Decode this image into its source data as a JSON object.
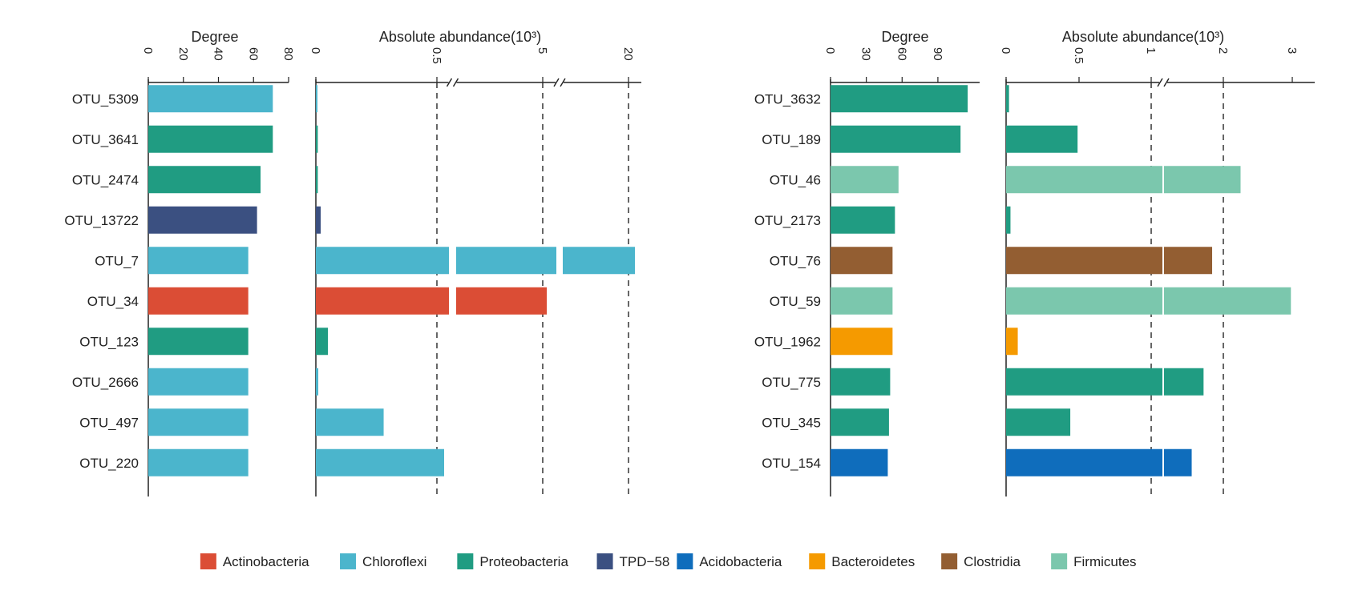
{
  "chart_data": [
    {
      "type": "bar",
      "orientation": "horizontal",
      "title": "Degree",
      "categories": [
        "OTU_5309",
        "OTU_3641",
        "OTU_2474",
        "OTU_13722",
        "OTU_7",
        "OTU_34",
        "OTU_123",
        "OTU_2666",
        "OTU_497",
        "OTU_220"
      ],
      "values": [
        71,
        71,
        64,
        62,
        57,
        57,
        57,
        57,
        57,
        57
      ],
      "phyla": [
        "Chloroflexi",
        "Proteobacteria",
        "Proteobacteria",
        "TPD-58",
        "Chloroflexi",
        "Actinobacteria",
        "Proteobacteria",
        "Chloroflexi",
        "Chloroflexi",
        "Chloroflexi"
      ],
      "xlim": [
        0,
        80
      ],
      "ticks": [
        0,
        20,
        40,
        60,
        80
      ],
      "tick_labels": [
        "0",
        "20",
        "40",
        "60",
        "80"
      ]
    },
    {
      "type": "bar",
      "orientation": "horizontal",
      "title": "Absolute abundance(10³)",
      "categories": [
        "OTU_5309",
        "OTU_3641",
        "OTU_2474",
        "OTU_13722",
        "OTU_7",
        "OTU_34",
        "OTU_123",
        "OTU_2666",
        "OTU_497",
        "OTU_220"
      ],
      "values": [
        0.005,
        0.008,
        0.008,
        0.02,
        20.5,
        5.3,
        0.05,
        0.01,
        0.28,
        0.53
      ],
      "phyla": [
        "Chloroflexi",
        "Proteobacteria",
        "Proteobacteria",
        "TPD-58",
        "Chloroflexi",
        "Actinobacteria",
        "Proteobacteria",
        "Chloroflexi",
        "Chloroflexi",
        "Chloroflexi"
      ],
      "axis_breaks": [
        0.55,
        6
      ],
      "ticks": [
        0,
        0.5,
        5,
        20
      ],
      "tick_labels": [
        "0",
        "0.5",
        "5",
        "20"
      ],
      "dashed_guides": [
        0.5,
        5,
        20
      ]
    },
    {
      "type": "bar",
      "orientation": "horizontal",
      "title": "Degree",
      "categories": [
        "OTU_3632",
        "OTU_189",
        "OTU_46",
        "OTU_2173",
        "OTU_76",
        "OTU_59",
        "OTU_1962",
        "OTU_775",
        "OTU_345",
        "OTU_154"
      ],
      "values": [
        115,
        109,
        57,
        54,
        52,
        52,
        52,
        50,
        49,
        48
      ],
      "phyla": [
        "Proteobacteria",
        "Proteobacteria",
        "Firmicutes",
        "Proteobacteria",
        "Clostridia",
        "Firmicutes",
        "Bacteroidetes",
        "Proteobacteria",
        "Proteobacteria",
        "Acidobacteria"
      ],
      "xlim": [
        0,
        125
      ],
      "ticks": [
        0,
        30,
        60,
        90
      ],
      "tick_labels": [
        "0",
        "30",
        "60",
        "90"
      ]
    },
    {
      "type": "bar",
      "orientation": "horizontal",
      "title": "Absolute abundance(10³)",
      "categories": [
        "OTU_3632",
        "OTU_189",
        "OTU_46",
        "OTU_2173",
        "OTU_76",
        "OTU_59",
        "OTU_1962",
        "OTU_775",
        "OTU_345",
        "OTU_154"
      ],
      "values": [
        0.02,
        0.49,
        2.25,
        0.03,
        1.83,
        2.98,
        0.08,
        1.7,
        0.44,
        1.52
      ],
      "phyla": [
        "Proteobacteria",
        "Proteobacteria",
        "Firmicutes",
        "Proteobacteria",
        "Clostridia",
        "Firmicutes",
        "Bacteroidetes",
        "Proteobacteria",
        "Proteobacteria",
        "Acidobacteria"
      ],
      "axis_breaks": [
        1.1
      ],
      "ticks": [
        0,
        0.5,
        1,
        2,
        3
      ],
      "tick_labels": [
        "0",
        "0.5",
        "1",
        "2",
        "3"
      ],
      "dashed_guides": [
        1,
        2
      ]
    }
  ],
  "legend": {
    "position": "bottom",
    "entries": [
      {
        "name": "Actinobacteria",
        "color": "#db4d35"
      },
      {
        "name": "Chloroflexi",
        "color": "#4bb5cc"
      },
      {
        "name": "Proteobacteria",
        "color": "#209c82"
      },
      {
        "name": "TPD−58",
        "color": "#3b5081"
      },
      {
        "name": "Acidobacteria",
        "color": "#0f6dbc"
      },
      {
        "name": "Bacteroidetes",
        "color": "#f59a00"
      },
      {
        "name": "Clostridia",
        "color": "#935e32"
      },
      {
        "name": "Firmicutes",
        "color": "#7bc7ad"
      }
    ]
  },
  "phylum_colors": {
    "Actinobacteria": "#db4d35",
    "Chloroflexi": "#4bb5cc",
    "Proteobacteria": "#209c82",
    "TPD-58": "#3b5081",
    "Acidobacteria": "#0f6dbc",
    "Bacteroidetes": "#f59a00",
    "Clostridia": "#935e32",
    "Firmicutes": "#7bc7ad"
  }
}
